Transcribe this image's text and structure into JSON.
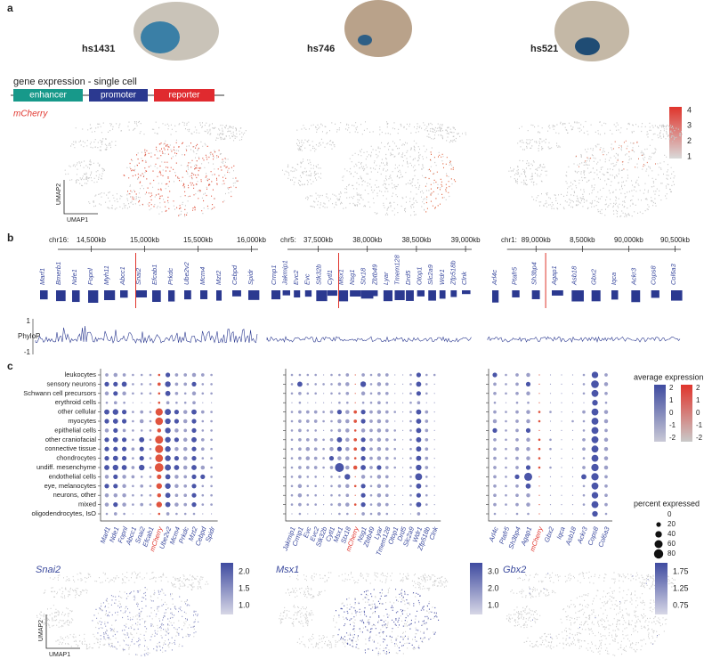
{
  "panel_labels": [
    "a",
    "b",
    "c"
  ],
  "enhancers": [
    "hs1431",
    "hs746",
    "hs521"
  ],
  "construct": {
    "title": "gene expression - single cell",
    "parts": [
      "enhancer",
      "promoter",
      "reporter"
    ]
  },
  "umap_top": {
    "label": "mCherry",
    "scale_ticks": [
      4,
      3,
      2,
      1
    ],
    "y_axis": "UMAP2",
    "x_axis": "UMAP1"
  },
  "tracks": [
    {
      "chrom": "chr16:",
      "ticks": [
        "14,500kb",
        "15,000kb",
        "15,500kb",
        "16,000kb"
      ],
      "genes": [
        "Marf1",
        "Bmerb1",
        "Nde1",
        "Fopnl",
        "Myh11",
        "Abcc1",
        "Snai2",
        "Efcab1",
        "Prkdc",
        "Ube2v2",
        "Mcm4",
        "Mzt2",
        "Cebpd",
        "Spidr"
      ]
    },
    {
      "chrom": "chr5:",
      "ticks": [
        "37,500kb",
        "38,000kb",
        "38,500kb",
        "39,000kb"
      ],
      "genes": [
        "Crmp1",
        "Jakmip1",
        "Evc2",
        "Evc",
        "Stk32b",
        "Cytl1",
        "Msx1",
        "Nsg1",
        "Stx18",
        "Zbtb49",
        "Lyar",
        "Tmem128",
        "Drd5",
        "Otop1",
        "Slc2a9",
        "Wdr1",
        "Zfp518b",
        "Clnk"
      ]
    },
    {
      "chrom": "chr1:",
      "ticks": [
        "89,000kb",
        "8,500kb",
        "90,000kb",
        "90,500kb"
      ],
      "genes": [
        "Arl4c",
        "Ptafr5",
        "Sh3bp4",
        "Agap1",
        "Asb18",
        "Gbx2",
        "Iqca",
        "Ackr3",
        "Cops8",
        "Col6a3"
      ]
    }
  ],
  "phylop": {
    "label": "PhyloP",
    "ticks": [
      1,
      -1
    ]
  },
  "dotplot": {
    "cell_types": [
      "leukocytes",
      "sensory neurons",
      "Schwann cell precursors",
      "erythroid cells",
      "other cellular",
      "myocytes",
      "epithelial cells",
      "other craniofacial",
      "connective tissue",
      "chondrocytes",
      "undiff. mesenchyme",
      "endothelial cells",
      "eye, melanocytes",
      "neurons, other",
      "mixed",
      "oligodendrocytes, IsO"
    ],
    "panels": [
      {
        "genes": [
          "Marf1",
          "Nde1",
          "Fopnl",
          "Abcc1",
          "Snai2",
          "Efcab1",
          "mCherry",
          "Ube2v2",
          "Mcm4",
          "Prkdc",
          "Mzt2",
          "Cebpd",
          "Spidr"
        ],
        "percent": [
          [
            10,
            15,
            10,
            5,
            5,
            5,
            5,
            20,
            10,
            10,
            15,
            10,
            5
          ],
          [
            20,
            20,
            25,
            5,
            5,
            5,
            10,
            30,
            10,
            10,
            20,
            5,
            5
          ],
          [
            15,
            20,
            15,
            5,
            5,
            5,
            5,
            25,
            10,
            5,
            15,
            5,
            5
          ],
          [
            5,
            10,
            5,
            0,
            0,
            0,
            5,
            10,
            5,
            5,
            10,
            0,
            0
          ],
          [
            25,
            30,
            20,
            5,
            10,
            5,
            50,
            35,
            20,
            15,
            25,
            10,
            5
          ],
          [
            20,
            25,
            20,
            5,
            15,
            5,
            55,
            30,
            20,
            15,
            20,
            5,
            5
          ],
          [
            15,
            20,
            10,
            5,
            5,
            5,
            15,
            30,
            15,
            10,
            20,
            5,
            5
          ],
          [
            20,
            25,
            20,
            5,
            25,
            5,
            60,
            30,
            20,
            15,
            25,
            10,
            5
          ],
          [
            20,
            20,
            20,
            10,
            20,
            5,
            60,
            30,
            15,
            15,
            20,
            10,
            5
          ],
          [
            20,
            25,
            20,
            5,
            20,
            5,
            55,
            30,
            20,
            15,
            20,
            5,
            5
          ],
          [
            25,
            30,
            25,
            10,
            30,
            5,
            70,
            35,
            25,
            15,
            25,
            15,
            5
          ],
          [
            15,
            20,
            15,
            10,
            5,
            5,
            20,
            25,
            15,
            10,
            20,
            20,
            5
          ],
          [
            20,
            20,
            15,
            5,
            10,
            5,
            30,
            30,
            15,
            10,
            20,
            5,
            5
          ],
          [
            15,
            15,
            15,
            5,
            5,
            5,
            15,
            25,
            10,
            10,
            20,
            5,
            5
          ],
          [
            15,
            20,
            15,
            5,
            10,
            5,
            30,
            25,
            15,
            10,
            20,
            5,
            5
          ],
          [
            5,
            10,
            5,
            0,
            0,
            0,
            5,
            10,
            5,
            5,
            5,
            0,
            0
          ]
        ]
      },
      {
        "genes": [
          "Jakmip1",
          "Crmp1",
          "Evc",
          "Evc2",
          "Stk32b",
          "Cytl1",
          "Msx1",
          "Stx18",
          "mCherry",
          "Nsg1",
          "Zbtb49",
          "Lyar",
          "Tmem128",
          "Otop1",
          "Drd5",
          "Slc2a9",
          "Wdr1",
          "Zfp518b",
          "Clnk"
        ],
        "percent": [
          [
            5,
            5,
            5,
            5,
            0,
            5,
            5,
            10,
            0,
            10,
            5,
            10,
            10,
            0,
            0,
            5,
            20,
            5,
            5
          ],
          [
            5,
            25,
            5,
            5,
            5,
            5,
            10,
            15,
            0,
            30,
            5,
            15,
            10,
            0,
            0,
            5,
            25,
            5,
            0
          ],
          [
            5,
            10,
            5,
            5,
            0,
            5,
            5,
            10,
            0,
            15,
            5,
            10,
            10,
            0,
            0,
            5,
            20,
            5,
            0
          ],
          [
            0,
            5,
            0,
            0,
            0,
            0,
            5,
            5,
            0,
            5,
            5,
            10,
            5,
            0,
            0,
            5,
            10,
            0,
            0
          ],
          [
            5,
            10,
            10,
            10,
            5,
            10,
            20,
            15,
            10,
            20,
            10,
            15,
            10,
            5,
            0,
            5,
            25,
            10,
            0
          ],
          [
            5,
            10,
            10,
            10,
            5,
            5,
            15,
            15,
            10,
            20,
            10,
            15,
            10,
            0,
            0,
            5,
            25,
            10,
            0
          ],
          [
            5,
            10,
            5,
            5,
            0,
            5,
            10,
            15,
            5,
            15,
            10,
            15,
            10,
            5,
            0,
            5,
            25,
            10,
            0
          ],
          [
            5,
            10,
            10,
            10,
            5,
            10,
            25,
            15,
            10,
            20,
            10,
            15,
            10,
            5,
            0,
            5,
            25,
            10,
            0
          ],
          [
            5,
            10,
            15,
            10,
            5,
            15,
            20,
            15,
            10,
            20,
            10,
            15,
            10,
            5,
            0,
            5,
            25,
            10,
            0
          ],
          [
            5,
            10,
            15,
            10,
            5,
            20,
            15,
            15,
            5,
            20,
            10,
            15,
            10,
            5,
            0,
            5,
            25,
            10,
            0
          ],
          [
            5,
            10,
            10,
            10,
            5,
            10,
            75,
            15,
            15,
            25,
            10,
            20,
            10,
            5,
            0,
            5,
            30,
            10,
            0
          ],
          [
            5,
            10,
            5,
            5,
            0,
            5,
            5,
            30,
            0,
            15,
            5,
            15,
            10,
            0,
            0,
            5,
            45,
            5,
            0
          ],
          [
            5,
            15,
            5,
            5,
            0,
            5,
            10,
            15,
            5,
            20,
            5,
            15,
            10,
            0,
            0,
            5,
            25,
            5,
            0
          ],
          [
            5,
            15,
            5,
            5,
            0,
            5,
            5,
            10,
            0,
            20,
            5,
            15,
            10,
            0,
            0,
            5,
            20,
            5,
            0
          ],
          [
            5,
            10,
            5,
            5,
            0,
            5,
            10,
            15,
            5,
            20,
            5,
            15,
            10,
            0,
            0,
            5,
            25,
            5,
            0
          ],
          [
            0,
            5,
            0,
            0,
            0,
            0,
            5,
            5,
            0,
            10,
            5,
            10,
            5,
            0,
            0,
            0,
            10,
            0,
            0
          ]
        ]
      },
      {
        "genes": [
          "Arl4c",
          "Ptafr5",
          "Sh3bp4",
          "Agap1",
          "mCherry",
          "Gbx2",
          "Iqca",
          "Asb18",
          "Ackr3",
          "Cops8",
          "Col6a3"
        ],
        "percent": [
          [
            20,
            5,
            10,
            15,
            0,
            0,
            0,
            0,
            5,
            40,
            10
          ],
          [
            10,
            5,
            10,
            20,
            0,
            0,
            0,
            0,
            5,
            55,
            15
          ],
          [
            10,
            5,
            10,
            15,
            0,
            0,
            0,
            0,
            5,
            45,
            10
          ],
          [
            5,
            0,
            5,
            5,
            0,
            0,
            0,
            0,
            0,
            30,
            5
          ],
          [
            10,
            5,
            10,
            15,
            5,
            5,
            0,
            0,
            10,
            45,
            15
          ],
          [
            15,
            5,
            10,
            15,
            5,
            0,
            0,
            5,
            5,
            45,
            15
          ],
          [
            20,
            5,
            10,
            20,
            0,
            0,
            0,
            0,
            5,
            45,
            10
          ],
          [
            10,
            5,
            10,
            15,
            5,
            5,
            0,
            0,
            10,
            45,
            15
          ],
          [
            10,
            5,
            15,
            15,
            5,
            5,
            0,
            0,
            10,
            45,
            15
          ],
          [
            10,
            5,
            10,
            15,
            5,
            0,
            0,
            0,
            5,
            45,
            15
          ],
          [
            10,
            5,
            10,
            20,
            5,
            5,
            0,
            0,
            10,
            50,
            15
          ],
          [
            10,
            5,
            20,
            60,
            0,
            0,
            0,
            0,
            25,
            50,
            10
          ],
          [
            10,
            5,
            10,
            25,
            0,
            0,
            0,
            0,
            5,
            45,
            10
          ],
          [
            10,
            5,
            10,
            15,
            0,
            0,
            0,
            0,
            5,
            40,
            10
          ],
          [
            10,
            5,
            10,
            15,
            0,
            0,
            0,
            0,
            5,
            45,
            10
          ],
          [
            5,
            0,
            5,
            5,
            0,
            0,
            0,
            0,
            0,
            30,
            5
          ]
        ]
      }
    ],
    "avg_label": "average expression",
    "avg_ticks": [
      2,
      1,
      0,
      -1,
      -2
    ],
    "pct_label": "percent expressed",
    "pct_ticks": [
      0,
      20,
      40,
      60,
      80
    ]
  },
  "umap_bottom": [
    {
      "gene": "Snai2",
      "ticks": [
        {
          "value": 2,
          "label": "2.0"
        },
        1.5,
        {
          "value": 1,
          "label": "1.0"
        }
      ]
    },
    {
      "gene": "Msx1",
      "ticks": [
        {
          "value": 3,
          "label": "3.0"
        },
        {
          "value": 2,
          "label": "2.0"
        },
        {
          "value": 1,
          "label": "1.0"
        }
      ]
    },
    {
      "gene": "Gbx2",
      "ticks": [
        1.75,
        1.25,
        0.75
      ]
    }
  ]
}
